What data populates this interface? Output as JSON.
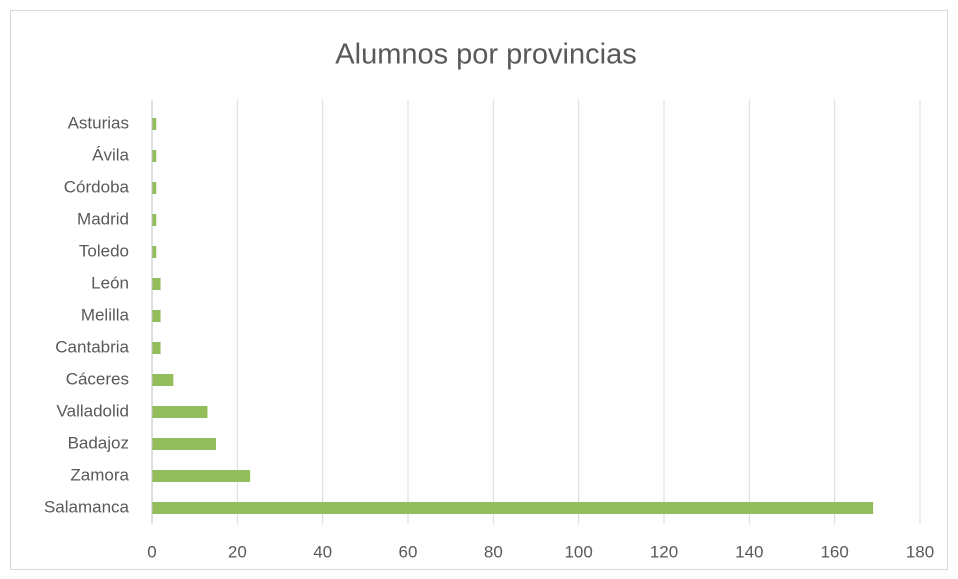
{
  "chart_data": {
    "type": "barh",
    "title": "Alumnos por provincias",
    "categories": [
      "Asturias",
      "Ávila",
      "Córdoba",
      "Madrid",
      "Toledo",
      "León",
      "Melilla",
      "Cantabria",
      "Cáceres",
      "Valladolid",
      "Badajoz",
      "Zamora",
      "Salamanca"
    ],
    "values": [
      1,
      1,
      1,
      1,
      1,
      2,
      2,
      2,
      5,
      13,
      15,
      23,
      169
    ],
    "color": "#93bd5a",
    "xlim": [
      0,
      180
    ],
    "xticks": [
      0,
      20,
      40,
      60,
      80,
      100,
      120,
      140,
      160,
      180
    ],
    "grid": true
  }
}
